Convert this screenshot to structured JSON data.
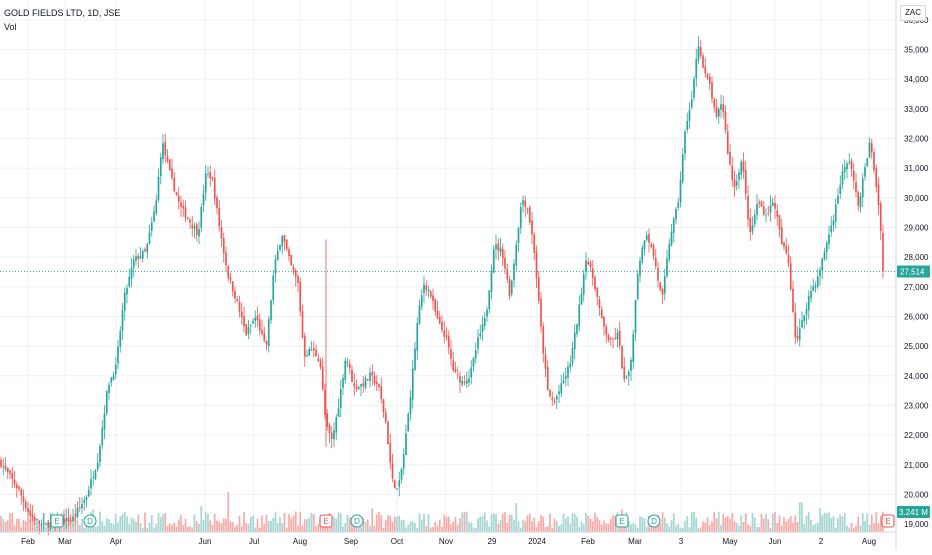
{
  "legend": {
    "symbol_line": "GOLD FIELDS LTD, 1D, JSE",
    "volume_label": "Vol"
  },
  "currency_button": "ZAC",
  "colors": {
    "up": "#26a69a",
    "down": "#ef5350",
    "up_volume": "#a5d6d1",
    "down_volume": "#f7a9a7",
    "grid": "#eef0f3",
    "axis_text": "#131722"
  },
  "chart_data": {
    "type": "candlestick",
    "title": "GOLD FIELDS LTD, 1D, JSE",
    "currency": "ZAC",
    "last_price": "27,514",
    "last_volume": "3.241 M",
    "ylim": [
      18800,
      36400
    ],
    "y_ticks": [
      "19,000",
      "20,000",
      "21,000",
      "22,000",
      "23,000",
      "24,000",
      "25,000",
      "26,000",
      "27,000",
      "28,000",
      "29,000",
      "30,000",
      "31,000",
      "32,000",
      "33,000",
      "34,000",
      "35,000",
      "36,000"
    ],
    "x_ticks": [
      "Feb",
      "Mar",
      "Apr",
      "Jun",
      "Jul",
      "Aug",
      "Sep",
      "Oct",
      "Nov",
      "29",
      "2024",
      "Feb",
      "Mar",
      "3",
      "May",
      "Jun",
      "2",
      "Aug"
    ],
    "grid": true,
    "event_markers": [
      {
        "label": "E",
        "type": "earnings"
      },
      {
        "label": "D",
        "type": "dividend"
      },
      {
        "label": "E",
        "type": "earnings"
      },
      {
        "label": "D",
        "type": "dividend"
      },
      {
        "label": "E",
        "type": "earnings"
      },
      {
        "label": "D",
        "type": "dividend"
      },
      {
        "label": "E",
        "type": "earnings"
      }
    ],
    "close_path": [
      [
        0,
        21100
      ],
      [
        8,
        20700
      ],
      [
        18,
        20200
      ],
      [
        30,
        19300
      ],
      [
        42,
        18950
      ],
      [
        56,
        19050
      ],
      [
        72,
        19150
      ],
      [
        86,
        19900
      ],
      [
        98,
        21200
      ],
      [
        108,
        23700
      ],
      [
        116,
        24300
      ],
      [
        124,
        26600
      ],
      [
        134,
        27900
      ],
      [
        146,
        28200
      ],
      [
        156,
        29800
      ],
      [
        162,
        31900
      ],
      [
        170,
        30800
      ],
      [
        180,
        29700
      ],
      [
        190,
        29200
      ],
      [
        198,
        28800
      ],
      [
        206,
        30800
      ],
      [
        212,
        30700
      ],
      [
        220,
        28900
      ],
      [
        228,
        27400
      ],
      [
        236,
        26600
      ],
      [
        246,
        25400
      ],
      [
        256,
        26000
      ],
      [
        266,
        24900
      ],
      [
        274,
        27600
      ],
      [
        282,
        28800
      ],
      [
        290,
        27800
      ],
      [
        298,
        27100
      ],
      [
        304,
        24700
      ],
      [
        312,
        24900
      ],
      [
        320,
        24500
      ],
      [
        326,
        22300
      ],
      [
        332,
        21800
      ],
      [
        338,
        22900
      ],
      [
        346,
        24700
      ],
      [
        354,
        23600
      ],
      [
        362,
        23700
      ],
      [
        370,
        24000
      ],
      [
        378,
        23700
      ],
      [
        386,
        22400
      ],
      [
        392,
        20500
      ],
      [
        398,
        20100
      ],
      [
        404,
        21400
      ],
      [
        410,
        23200
      ],
      [
        418,
        26000
      ],
      [
        424,
        27100
      ],
      [
        430,
        26800
      ],
      [
        438,
        25800
      ],
      [
        446,
        25300
      ],
      [
        454,
        24100
      ],
      [
        462,
        23800
      ],
      [
        470,
        24000
      ],
      [
        478,
        25200
      ],
      [
        486,
        26000
      ],
      [
        494,
        28400
      ],
      [
        502,
        28200
      ],
      [
        510,
        26700
      ],
      [
        516,
        28400
      ],
      [
        522,
        30000
      ],
      [
        528,
        29600
      ],
      [
        534,
        28300
      ],
      [
        542,
        25200
      ],
      [
        548,
        23400
      ],
      [
        554,
        23100
      ],
      [
        562,
        23700
      ],
      [
        570,
        24400
      ],
      [
        578,
        26000
      ],
      [
        586,
        28000
      ],
      [
        594,
        27200
      ],
      [
        602,
        25800
      ],
      [
        610,
        25100
      ],
      [
        618,
        25400
      ],
      [
        624,
        23800
      ],
      [
        630,
        24100
      ],
      [
        638,
        27600
      ],
      [
        646,
        28900
      ],
      [
        654,
        28000
      ],
      [
        662,
        26500
      ],
      [
        670,
        28700
      ],
      [
        678,
        29800
      ],
      [
        686,
        32500
      ],
      [
        692,
        33300
      ],
      [
        698,
        35300
      ],
      [
        704,
        34200
      ],
      [
        710,
        33800
      ],
      [
        716,
        32600
      ],
      [
        722,
        33300
      ],
      [
        728,
        31500
      ],
      [
        734,
        30300
      ],
      [
        742,
        31300
      ],
      [
        750,
        28700
      ],
      [
        758,
        29900
      ],
      [
        766,
        29400
      ],
      [
        774,
        29900
      ],
      [
        782,
        28400
      ],
      [
        788,
        28000
      ],
      [
        796,
        25100
      ],
      [
        802,
        25800
      ],
      [
        810,
        26800
      ],
      [
        818,
        27300
      ],
      [
        826,
        28400
      ],
      [
        834,
        29400
      ],
      [
        842,
        30800
      ],
      [
        850,
        31300
      ],
      [
        858,
        29700
      ],
      [
        864,
        30800
      ],
      [
        870,
        31900
      ],
      [
        876,
        30500
      ],
      [
        880,
        29300
      ],
      [
        884,
        27514
      ]
    ],
    "volume_range": [
      0.5,
      4.5
    ],
    "volume_spikes": [
      {
        "x": 94,
        "vol": 3.0
      },
      {
        "x": 202,
        "vol": 3.4
      },
      {
        "x": 229,
        "vol": 5.3
      },
      {
        "x": 326,
        "vol": 2.3
      },
      {
        "x": 372,
        "vol": 3.1
      },
      {
        "x": 395,
        "vol": 2.0
      },
      {
        "x": 517,
        "vol": 3.8
      },
      {
        "x": 622,
        "vol": 3.0
      },
      {
        "x": 801,
        "vol": 3.9
      },
      {
        "x": 820,
        "vol": 3.1
      }
    ]
  }
}
